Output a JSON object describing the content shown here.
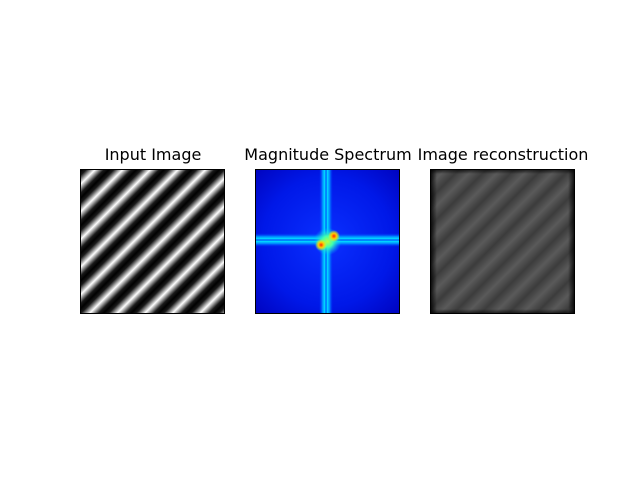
{
  "panels": [
    {
      "title": "Input Image"
    },
    {
      "title": "Magnitude Spectrum"
    },
    {
      "title": "Image reconstruction"
    }
  ]
}
